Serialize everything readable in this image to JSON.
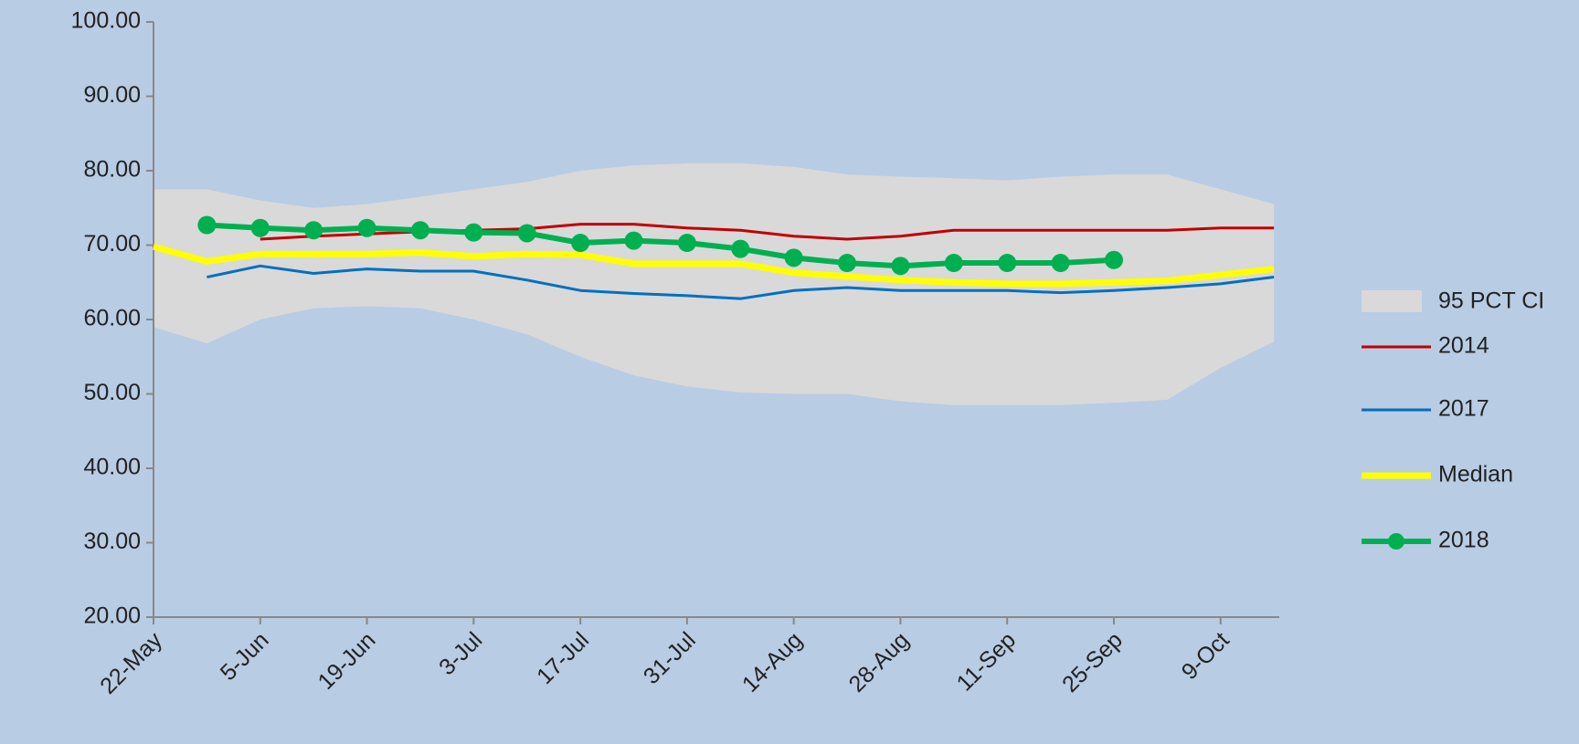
{
  "chart_data": {
    "type": "line",
    "categories": [
      "22-May",
      null,
      "5-Jun",
      null,
      "19-Jun",
      null,
      "3-Jul",
      null,
      "17-Jul",
      null,
      "31-Jul",
      null,
      "14-Aug",
      null,
      "28-Aug",
      null,
      "11-Sep",
      null,
      "25-Sep",
      null,
      "9-Oct",
      null
    ],
    "band": {
      "name": "95 PCT CI",
      "color": "#d9d9d9",
      "upper": [
        77.5,
        77.5,
        76,
        75,
        75.5,
        76.5,
        77.5,
        78.5,
        80,
        80.7,
        81,
        81,
        80.5,
        79.5,
        79.2,
        79,
        78.7,
        79.2,
        79.5,
        79.5,
        77.5,
        75.5
      ],
      "lower": [
        59,
        56.8,
        60,
        61.5,
        61.8,
        61.5,
        60,
        58,
        55,
        52.5,
        51,
        50.2,
        50,
        50,
        49,
        48.5,
        48.5,
        48.5,
        48.8,
        49.2,
        53.5,
        57
      ]
    },
    "series": [
      {
        "name": "2014",
        "color": "#c00000",
        "values": [
          null,
          null,
          70.8,
          71.2,
          71.5,
          71.8,
          72,
          72.2,
          72.8,
          72.8,
          72.3,
          72,
          71.2,
          70.8,
          71.2,
          72,
          72,
          72,
          72,
          72,
          72.3,
          72.3
        ]
      },
      {
        "name": "2017",
        "color": "#0070c0",
        "values": [
          null,
          65.7,
          67.2,
          66.2,
          66.8,
          66.5,
          66.5,
          65.3,
          63.9,
          63.5,
          63.2,
          62.8,
          63.9,
          64.3,
          63.9,
          63.9,
          63.9,
          63.6,
          63.9,
          64.3,
          64.8,
          65.7
        ]
      },
      {
        "name": "Median",
        "color": "#ffff00",
        "values": [
          69.8,
          67.8,
          68.8,
          68.8,
          68.8,
          69,
          68.5,
          68.8,
          68.7,
          67.5,
          67.5,
          67.5,
          66.3,
          65.8,
          65.3,
          65,
          64.8,
          64.8,
          65,
          65.2,
          66,
          66.8
        ]
      },
      {
        "name": "2018",
        "color": "#00b050",
        "marker": true,
        "values": [
          null,
          72.7,
          72.3,
          72,
          72.3,
          72,
          71.7,
          71.6,
          70.3,
          70.6,
          70.3,
          69.5,
          68.3,
          67.6,
          67.2,
          67.6,
          67.6,
          67.6,
          68,
          null,
          null,
          null
        ]
      }
    ],
    "ylim": [
      20,
      100
    ],
    "yticks": [
      {
        "value": 20,
        "label": "20.00"
      },
      {
        "value": 30,
        "label": "30.00"
      },
      {
        "value": 40,
        "label": "40.00"
      },
      {
        "value": 50,
        "label": "50.00"
      },
      {
        "value": 60,
        "label": "60.00"
      },
      {
        "value": 70,
        "label": "70.00"
      },
      {
        "value": 80,
        "label": "80.00"
      },
      {
        "value": 90,
        "label": "90.00"
      },
      {
        "value": 100,
        "label": "100.00"
      }
    ]
  }
}
